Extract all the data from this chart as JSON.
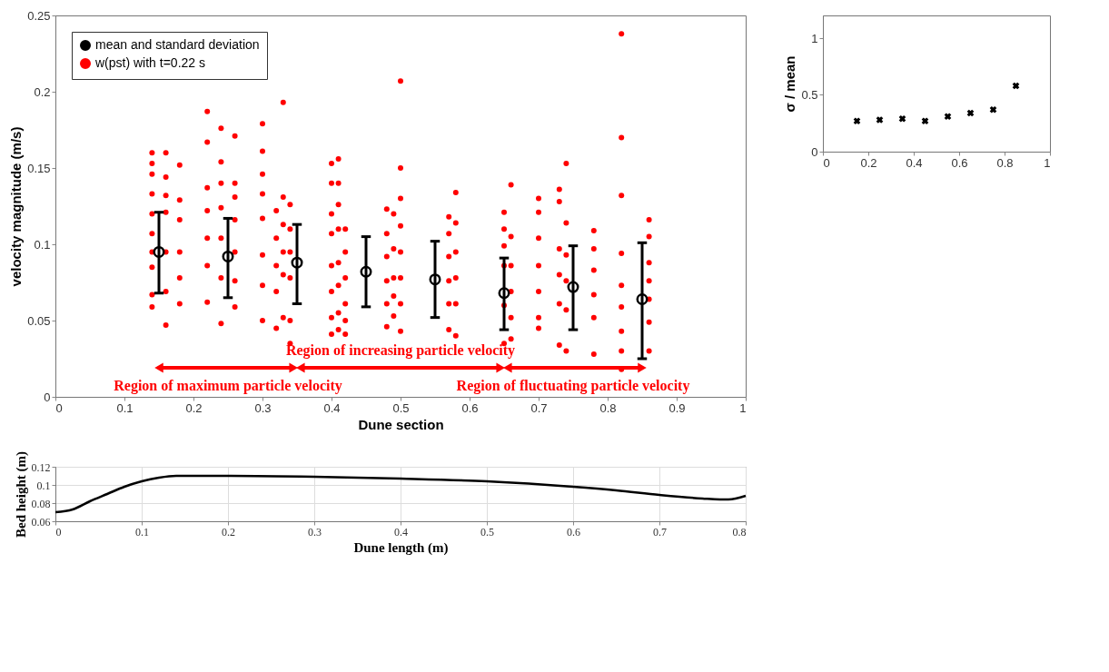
{
  "chart_data": [
    {
      "type": "scatter",
      "xlabel": "Dune section",
      "ylabel": "velocity magnitude (m/s)",
      "xlim": [
        0,
        1
      ],
      "xticks": [
        0,
        0.1,
        0.2,
        0.3,
        0.4,
        0.5,
        0.6,
        0.7,
        0.8,
        0.9,
        1
      ],
      "ylim": [
        0,
        0.25
      ],
      "yticks": [
        0,
        0.05,
        0.1,
        0.15,
        0.2,
        0.25
      ],
      "grid": false,
      "legend": "top left",
      "series": [
        {
          "name": "mean and standard deviation",
          "type": "scatter",
          "marker": "circle",
          "color": "#000000",
          "x": [
            0.15,
            0.25,
            0.35,
            0.45,
            0.55,
            0.65,
            0.75,
            0.85
          ],
          "values": [
            0.095,
            0.092,
            0.088,
            0.082,
            0.077,
            0.068,
            0.072,
            0.064
          ],
          "errors": [
            [
              0.068,
              0.121
            ],
            [
              0.065,
              0.117
            ],
            [
              0.061,
              0.113
            ],
            [
              0.059,
              0.105
            ],
            [
              0.052,
              0.102
            ],
            [
              0.044,
              0.091
            ],
            [
              0.044,
              0.099
            ],
            [
              0.025,
              0.101
            ]
          ]
        },
        {
          "name": "w(pst) with t=0.22 s",
          "type": "scatter",
          "marker": "circle",
          "color": "#ff0000",
          "x": [
            0.14,
            0.14,
            0.14,
            0.14,
            0.14,
            0.14,
            0.14,
            0.14,
            0.14,
            0.14,
            0.16,
            0.16,
            0.16,
            0.16,
            0.16,
            0.16,
            0.16,
            0.18,
            0.18,
            0.18,
            0.18,
            0.18,
            0.18,
            0.22,
            0.22,
            0.22,
            0.22,
            0.22,
            0.22,
            0.22,
            0.24,
            0.24,
            0.24,
            0.24,
            0.24,
            0.24,
            0.24,
            0.26,
            0.26,
            0.26,
            0.26,
            0.26,
            0.26,
            0.26,
            0.3,
            0.3,
            0.3,
            0.3,
            0.3,
            0.3,
            0.3,
            0.3,
            0.32,
            0.32,
            0.32,
            0.32,
            0.32,
            0.33,
            0.33,
            0.33,
            0.33,
            0.33,
            0.33,
            0.34,
            0.34,
            0.34,
            0.34,
            0.34,
            0.34,
            0.4,
            0.4,
            0.4,
            0.4,
            0.4,
            0.4,
            0.4,
            0.4,
            0.41,
            0.41,
            0.41,
            0.41,
            0.41,
            0.41,
            0.41,
            0.41,
            0.42,
            0.42,
            0.42,
            0.42,
            0.42,
            0.42,
            0.48,
            0.48,
            0.48,
            0.48,
            0.48,
            0.48,
            0.49,
            0.49,
            0.49,
            0.49,
            0.49,
            0.5,
            0.5,
            0.5,
            0.5,
            0.5,
            0.5,
            0.5,
            0.5,
            0.57,
            0.57,
            0.57,
            0.57,
            0.57,
            0.57,
            0.58,
            0.58,
            0.58,
            0.58,
            0.58,
            0.58,
            0.65,
            0.65,
            0.65,
            0.65,
            0.65,
            0.65,
            0.66,
            0.66,
            0.66,
            0.66,
            0.66,
            0.66,
            0.7,
            0.7,
            0.7,
            0.7,
            0.7,
            0.7,
            0.7,
            0.73,
            0.73,
            0.73,
            0.73,
            0.73,
            0.73,
            0.74,
            0.74,
            0.74,
            0.74,
            0.74,
            0.74,
            0.78,
            0.78,
            0.78,
            0.78,
            0.78,
            0.78,
            0.82,
            0.82,
            0.82,
            0.82,
            0.82,
            0.82,
            0.82,
            0.82,
            0.82,
            0.86,
            0.86,
            0.86,
            0.86,
            0.86,
            0.86,
            0.86
          ],
          "values": [
            0.16,
            0.153,
            0.146,
            0.133,
            0.12,
            0.107,
            0.095,
            0.085,
            0.067,
            0.059,
            0.16,
            0.144,
            0.132,
            0.121,
            0.095,
            0.069,
            0.047,
            0.152,
            0.129,
            0.116,
            0.095,
            0.078,
            0.061,
            0.187,
            0.167,
            0.137,
            0.122,
            0.104,
            0.086,
            0.062,
            0.176,
            0.154,
            0.14,
            0.124,
            0.104,
            0.078,
            0.048,
            0.171,
            0.14,
            0.131,
            0.116,
            0.095,
            0.076,
            0.059,
            0.179,
            0.161,
            0.146,
            0.133,
            0.117,
            0.093,
            0.073,
            0.05,
            0.122,
            0.104,
            0.086,
            0.069,
            0.045,
            0.193,
            0.131,
            0.113,
            0.095,
            0.08,
            0.052,
            0.126,
            0.11,
            0.095,
            0.078,
            0.05,
            0.035,
            0.153,
            0.14,
            0.12,
            0.107,
            0.086,
            0.069,
            0.052,
            0.041,
            0.156,
            0.14,
            0.126,
            0.11,
            0.088,
            0.073,
            0.055,
            0.044,
            0.11,
            0.095,
            0.078,
            0.061,
            0.05,
            0.041,
            0.123,
            0.107,
            0.092,
            0.076,
            0.061,
            0.046,
            0.12,
            0.097,
            0.078,
            0.066,
            0.053,
            0.207,
            0.15,
            0.13,
            0.112,
            0.095,
            0.078,
            0.061,
            0.043,
            0.118,
            0.107,
            0.092,
            0.076,
            0.061,
            0.044,
            0.134,
            0.114,
            0.095,
            0.078,
            0.061,
            0.04,
            0.121,
            0.11,
            0.099,
            0.086,
            0.06,
            0.035,
            0.139,
            0.105,
            0.086,
            0.069,
            0.052,
            0.038,
            0.13,
            0.121,
            0.104,
            0.086,
            0.069,
            0.052,
            0.045,
            0.136,
            0.128,
            0.097,
            0.08,
            0.061,
            0.034,
            0.153,
            0.114,
            0.093,
            0.076,
            0.057,
            0.03,
            0.109,
            0.097,
            0.083,
            0.067,
            0.052,
            0.028,
            0.238,
            0.17,
            0.132,
            0.094,
            0.073,
            0.059,
            0.043,
            0.03,
            0.018,
            0.116,
            0.105,
            0.088,
            0.076,
            0.064,
            0.049,
            0.03
          ]
        }
      ],
      "annotations": [
        "Region of maximum particle velocity",
        "Region of increasing particle velocity",
        "Region of fluctuating particle velocity"
      ]
    },
    {
      "type": "scatter",
      "ylabel": "σ / mean",
      "marker": "cross",
      "color": "#000000",
      "xlim": [
        0,
        1
      ],
      "xticks": [
        0,
        0.2,
        0.4,
        0.6,
        0.8,
        1
      ],
      "ylim": [
        0,
        1.2
      ],
      "yticks": [
        0,
        0.5,
        1
      ],
      "grid": false,
      "x": [
        0.15,
        0.25,
        0.35,
        0.45,
        0.55,
        0.65,
        0.75,
        0.85
      ],
      "values": [
        0.27,
        0.28,
        0.29,
        0.27,
        0.31,
        0.34,
        0.37,
        0.58
      ]
    },
    {
      "type": "line",
      "xlabel": "Dune length (m)",
      "ylabel": "Bed height (m)",
      "color": "#000000",
      "xlim": [
        0,
        0.8
      ],
      "xticks": [
        0,
        0.1,
        0.2,
        0.3,
        0.4,
        0.5,
        0.6,
        0.7,
        0.8
      ],
      "ylim": [
        0.06,
        0.12
      ],
      "yticks": [
        0.06,
        0.08,
        0.1,
        0.12
      ],
      "grid": true,
      "x": [
        0,
        0.02,
        0.04,
        0.06,
        0.08,
        0.1,
        0.12,
        0.14,
        0.2,
        0.3,
        0.4,
        0.5,
        0.6,
        0.65,
        0.7,
        0.75,
        0.77,
        0.78,
        0.8
      ],
      "values": [
        0.07,
        0.073,
        0.082,
        0.09,
        0.098,
        0.104,
        0.108,
        0.11,
        0.11,
        0.109,
        0.107,
        0.104,
        0.098,
        0.094,
        0.089,
        0.085,
        0.084,
        0.084,
        0.088
      ]
    }
  ]
}
